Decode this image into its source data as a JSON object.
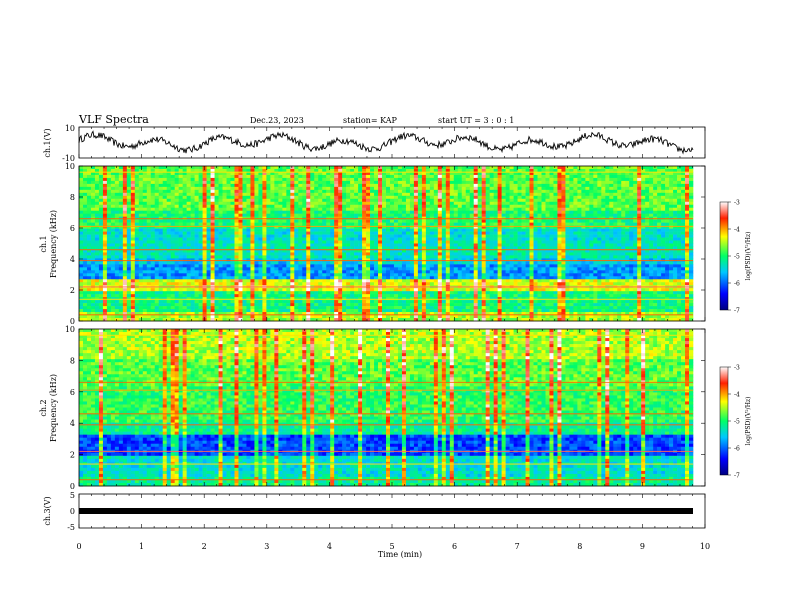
{
  "header": {
    "title": "VLF Spectra",
    "date": "Dec.23, 2023",
    "station": "station= KAP",
    "start": "start  UT =  3 : 0  : 1"
  },
  "colorbar": {
    "label": "log(PSD)(V²/Hz)",
    "ticks": [
      "-3",
      "-4",
      "-5",
      "-6",
      "-7"
    ]
  },
  "chart_data": [
    {
      "type": "line",
      "name": "ch1-waveform",
      "ylabel": "ch.1(V)",
      "ylim": [
        -10,
        10
      ],
      "yticks": [
        "10",
        "-10"
      ],
      "xlim": [
        0,
        10
      ],
      "description_of_signal": "noisy waveform oscillating roughly between -5 and 5 V"
    },
    {
      "type": "heatmap",
      "name": "ch1-spectrogram",
      "ylabel": "ch.1\nFrequency (kHz)",
      "ylim": [
        0,
        10
      ],
      "yticks": [
        "0",
        "2",
        "4",
        "6",
        "8",
        "10"
      ],
      "xlim": [
        0,
        10
      ],
      "zlim": [
        -7,
        -3
      ]
    },
    {
      "type": "heatmap",
      "name": "ch2-spectrogram",
      "ylabel": "ch.2\nFrequency (kHz)",
      "ylim": [
        0,
        10
      ],
      "yticks": [
        "0",
        "2",
        "4",
        "6",
        "8",
        "10"
      ],
      "xlim": [
        0,
        10
      ],
      "zlim": [
        -7,
        -3
      ]
    },
    {
      "type": "line",
      "name": "ch3-waveform",
      "ylabel": "ch.3(V)",
      "ylim": [
        -5,
        5
      ],
      "yticks": [
        "5",
        "0",
        "-5"
      ],
      "xlim": [
        0,
        10
      ],
      "constant_value": -1.5
    }
  ],
  "xaxis": {
    "label": "Time (min)",
    "ticks": [
      "0",
      "1",
      "2",
      "3",
      "4",
      "5",
      "6",
      "7",
      "8",
      "9",
      "10"
    ]
  }
}
